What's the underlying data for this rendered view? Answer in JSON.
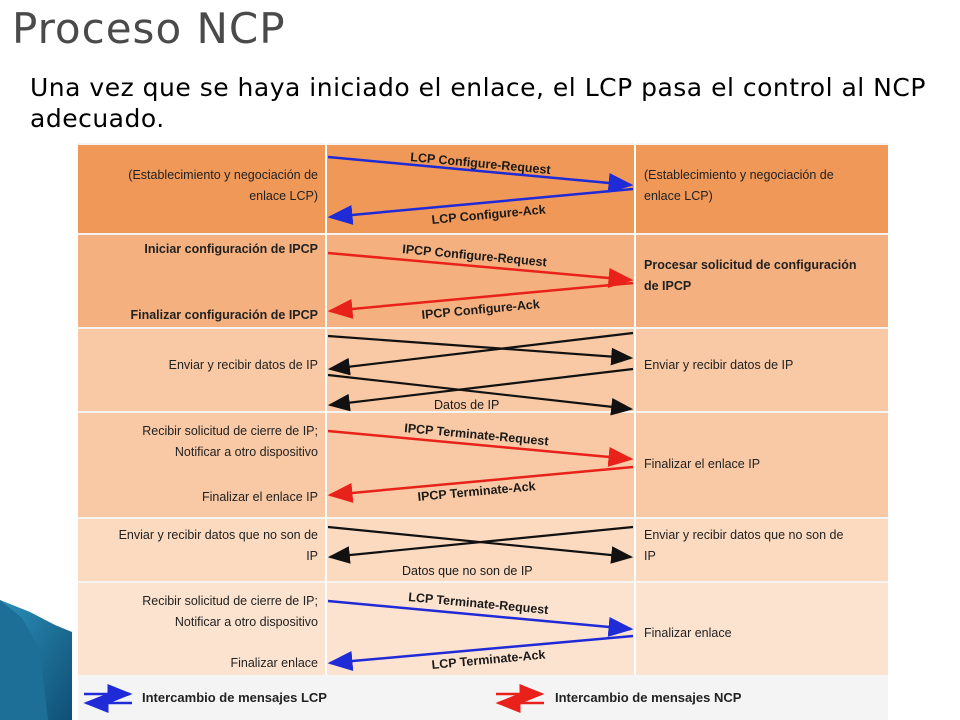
{
  "slide": {
    "title": "Proceso NCP",
    "subtitle": "Una vez que se haya iniciado el enlace, el LCP pasa el control al NCP adecuado."
  },
  "colors": {
    "lcp": "#1f2bd6",
    "ncp": "#e8221a",
    "data": "#111111",
    "band_dark": "#f19a5c",
    "band_mid": "#f6b98a",
    "band_light": "#f9cfae",
    "band_pale": "#fbe0cb"
  },
  "rows": [
    {
      "left": [
        "(Establecimiento y negociación de",
        "enlace LCP)"
      ],
      "left_bold": false,
      "right": [
        "(Establecimiento y negociación de",
        "enlace LCP)"
      ],
      "right_bold": false,
      "msg_top": "LCP Configure-Request",
      "msg_bottom": "LCP Configure-Ack",
      "kind": "lcp"
    },
    {
      "left_top": "Iniciar configuración de IPCP",
      "left_bottom": "Finalizar configuración de IPCP",
      "right": [
        "Procesar solicitud de configuración",
        "de IPCP"
      ],
      "msg_top": "IPCP Configure-Request",
      "msg_bottom": "IPCP Configure-Ack",
      "kind": "ncp"
    },
    {
      "left": [
        "Enviar y recibir datos de IP"
      ],
      "right": [
        "Enviar y recibir datos de IP"
      ],
      "msg_bottom": "Datos de IP",
      "kind": "data"
    },
    {
      "left_top": [
        "Recibir solicitud de cierre de IP;",
        "Notificar a otro dispositivo"
      ],
      "left_bottom": "Finalizar el enlace IP",
      "right": [
        "Finalizar el enlace IP"
      ],
      "msg_top": "IPCP Terminate-Request",
      "msg_bottom": "IPCP Terminate-Ack",
      "kind": "ncp"
    },
    {
      "left": [
        "Enviar y recibir datos que no son de",
        "IP"
      ],
      "right": [
        "Enviar y recibir datos que no son de",
        "IP"
      ],
      "msg_bottom": "Datos que no son de IP",
      "kind": "data"
    },
    {
      "left_top": [
        "Recibir solicitud de cierre de IP;",
        "Notificar a otro dispositivo"
      ],
      "left_bottom": "Finalizar enlace",
      "right": [
        "Finalizar enlace"
      ],
      "msg_top": "LCP Terminate-Request",
      "msg_bottom": "LCP Terminate-Ack",
      "kind": "lcp"
    }
  ],
  "legend": {
    "lcp": "Intercambio de mensajes LCP",
    "ncp": "Intercambio de mensajes NCP"
  }
}
